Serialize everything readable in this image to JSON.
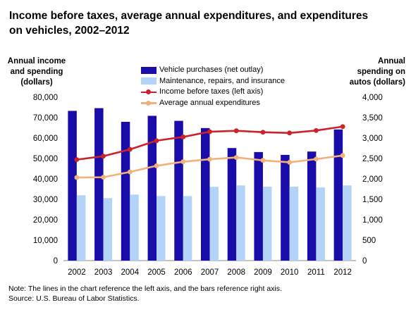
{
  "title": "Income before taxes, average annual expenditures, and expenditures on vehicles, 2002–2012",
  "left_axis_title": "Annual income and spending (dollars)",
  "right_axis_title": "Annual spending on autos (dollars)",
  "note": "Note: The lines in the chart reference the left axis, and the bars reference right axis.",
  "source": "Source: U.S. Bureau of Labor Statistics.",
  "colors": {
    "vehicle_purchases": "#1a0ca8",
    "maintenance": "#b3d4f8",
    "income": "#cc2229",
    "expenditures": "#f0b27a"
  },
  "chart_data": {
    "type": "bar+line",
    "categories": [
      "2002",
      "2003",
      "2004",
      "2005",
      "2006",
      "2007",
      "2008",
      "2009",
      "2010",
      "2011",
      "2012"
    ],
    "left_axis": {
      "ylim": [
        0,
        80000
      ],
      "ticks": [
        "0",
        "10,000",
        "20,000",
        "30,000",
        "40,000",
        "50,000",
        "60,000",
        "70,000",
        "80,000"
      ]
    },
    "right_axis": {
      "ylim": [
        0,
        4000
      ],
      "ticks": [
        "0",
        "500",
        "1,000",
        "1,500",
        "2,000",
        "2,500",
        "3,000",
        "3,500",
        "4,000"
      ]
    },
    "bar_series": [
      {
        "name": "Vehicle purchases (net outlay)",
        "axis": "right",
        "color": "#1a0ca8",
        "values": [
          3665,
          3732,
          3397,
          3544,
          3421,
          3244,
          2755,
          2657,
          2588,
          2669,
          3210
        ]
      },
      {
        "name": "Maintenance, repairs, and insurance",
        "axis": "right",
        "color": "#b3d4f8",
        "values": [
          1600,
          1530,
          1615,
          1580,
          1580,
          1805,
          1840,
          1810,
          1810,
          1790,
          1840
        ]
      }
    ],
    "line_series": [
      {
        "name": "Income before taxes (left axis)",
        "axis": "left",
        "color": "#cc2229",
        "values": [
          49430,
          51128,
          54453,
          58712,
          60533,
          63091,
          63563,
          62857,
          62481,
          63685,
          65596
        ]
      },
      {
        "name": "Average annual expenditures",
        "axis": "left",
        "color": "#f0b27a",
        "values": [
          40677,
          40817,
          43395,
          46409,
          48398,
          49638,
          50486,
          49067,
          48109,
          49705,
          51442
        ]
      }
    ],
    "legend_position": "top-center"
  }
}
